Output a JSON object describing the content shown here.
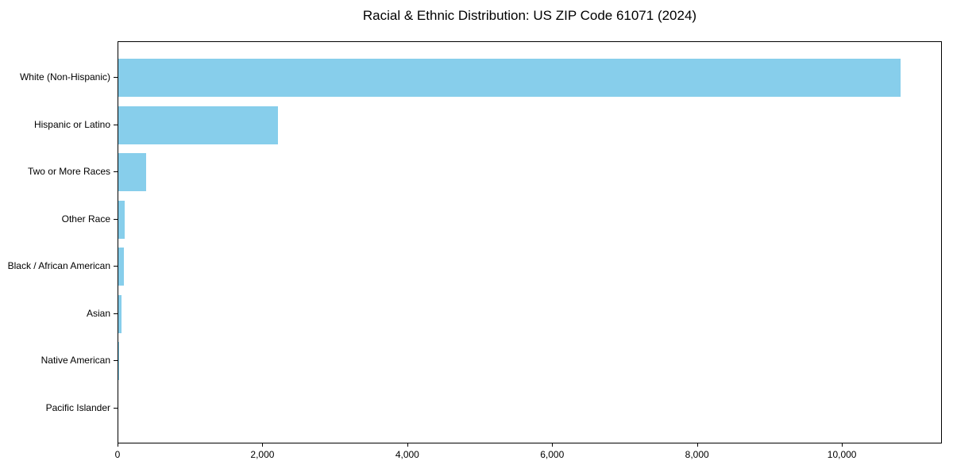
{
  "figure": {
    "background": "#ffffff"
  },
  "chart_data": {
    "type": "bar",
    "orientation": "horizontal",
    "title": "Racial & Ethnic Distribution: US ZIP Code 61071 (2024)",
    "categories": [
      "White (Non-Hispanic)",
      "Hispanic or Latino",
      "Two or More Races",
      "Other Race",
      "Black / African American",
      "Asian",
      "Native American",
      "Pacific Islander"
    ],
    "values": [
      10800,
      2200,
      385,
      90,
      75,
      40,
      10,
      0
    ],
    "xlabel": "",
    "ylabel": "",
    "xlim": [
      0,
      11380
    ],
    "xticks": [
      0,
      2000,
      4000,
      6000,
      8000,
      10000
    ],
    "xtick_labels": [
      "0",
      "2,000",
      "4,000",
      "6,000",
      "8,000",
      "10,000"
    ],
    "bar_color": "#87CEEB",
    "axis_color": "#000000",
    "grid": false,
    "legend": null
  }
}
